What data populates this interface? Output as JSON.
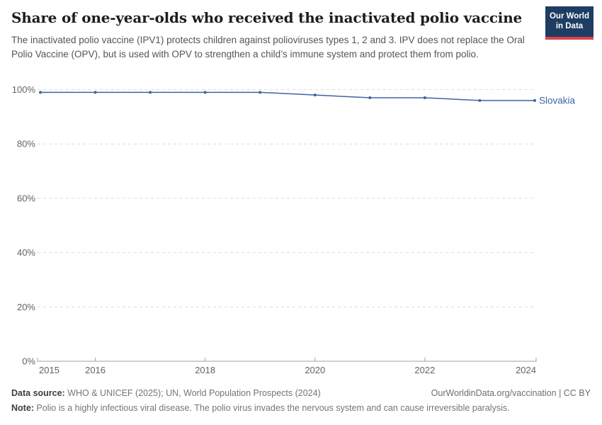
{
  "header": {
    "title": "Share of one-year-olds who received the inactivated polio vaccine",
    "subtitle": "The inactivated polio vaccine (IPV1) protects children against polioviruses types 1, 2 and 3. IPV does not replace the Oral Polio Vaccine (OPV), but is used with OPV to strengthen a child’s immune system and protect them from polio.",
    "logo": {
      "line1": "Our World",
      "line2": "in Data",
      "background_color": "#1d3d63",
      "stripe_color": "#e0434b"
    }
  },
  "chart_data": {
    "type": "line",
    "title": "Share of one-year-olds who received the inactivated polio vaccine",
    "x": [
      2015,
      2016,
      2017,
      2018,
      2019,
      2020,
      2021,
      2022,
      2023,
      2024
    ],
    "series": [
      {
        "name": "Slovakia",
        "color": "#3d64a3",
        "values": [
          99,
          99,
          99,
          99,
          99,
          98,
          97,
          97,
          96,
          96
        ]
      }
    ],
    "xlim": [
      2015,
      2024
    ],
    "ylim": [
      0,
      100
    ],
    "xticks": [
      2015,
      2016,
      2018,
      2020,
      2022,
      2024
    ],
    "yticks": [
      0,
      20,
      40,
      60,
      80,
      100
    ],
    "ytick_suffix": "%",
    "grid": "horizontal-dashed",
    "grid_color": "#dcdcdc",
    "axis_color": "#a1a1a1",
    "tick_label_color": "#636363",
    "legend_position": "end-of-line-label"
  },
  "footer": {
    "source_label": "Data source:",
    "source_text": " WHO & UNICEF (2025); UN, World Population Prospects (2024)",
    "right_text": "OurWorldinData.org/vaccination | CC BY",
    "note_label": "Note:",
    "note_text": " Polio is a highly infectious viral disease. The polio virus invades the nervous system and can cause irreversible paralysis."
  }
}
